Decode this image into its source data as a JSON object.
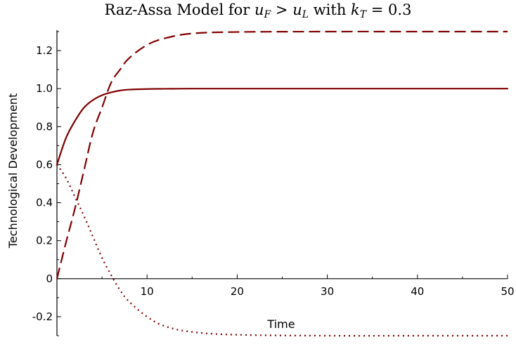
{
  "chart_data": {
    "type": "line",
    "title": {
      "prefix": "Raz-Assa Model for ",
      "u": "u",
      "sub_f": "F",
      "gt": " > ",
      "sub_l": "L",
      "with": " with ",
      "k": "k",
      "sub_t": "T",
      "eq": " = 0.3"
    },
    "xlabel": "Time",
    "ylabel": "Technological Development",
    "xlim": [
      0,
      50
    ],
    "ylim": [
      -0.3,
      1.3
    ],
    "x_ticks": [
      {
        "value": 10,
        "label": "10"
      },
      {
        "value": 20,
        "label": "20"
      },
      {
        "value": 30,
        "label": "30"
      },
      {
        "value": 40,
        "label": "40"
      },
      {
        "value": 50,
        "label": "50"
      }
    ],
    "y_ticks": [
      {
        "value": -0.2,
        "label": "-0.2"
      },
      {
        "value": 0,
        "label": "0"
      },
      {
        "value": 0.2,
        "label": "0.2"
      },
      {
        "value": 0.4,
        "label": "0.4"
      },
      {
        "value": 0.6,
        "label": "0.6"
      },
      {
        "value": 0.8,
        "label": "0.8"
      },
      {
        "value": 1.0,
        "label": "1.0"
      },
      {
        "value": 1.2,
        "label": "1.2"
      }
    ],
    "grid": false,
    "line_color": "#800000",
    "series": [
      {
        "style": "solid",
        "x": [
          0,
          1,
          2,
          3,
          4,
          5,
          6,
          7,
          8,
          10,
          12,
          15,
          20,
          30,
          40,
          50
        ],
        "y": [
          0.6,
          0.74,
          0.83,
          0.9,
          0.94,
          0.965,
          0.98,
          0.99,
          0.995,
          0.998,
          0.999,
          1.0,
          1.0,
          1.0,
          1.0,
          1.0
        ]
      },
      {
        "style": "dashed",
        "x": [
          0,
          1,
          2,
          3,
          4,
          5,
          6,
          7,
          8,
          10,
          12,
          15,
          20,
          30,
          40,
          50
        ],
        "y": [
          0.0,
          0.19,
          0.37,
          0.57,
          0.77,
          0.9,
          1.03,
          1.1,
          1.16,
          1.23,
          1.265,
          1.29,
          1.298,
          1.3,
          1.3,
          1.3
        ]
      },
      {
        "style": "dotted",
        "x": [
          0,
          1,
          2,
          3,
          4,
          5,
          6,
          7,
          8,
          10,
          12,
          15,
          20,
          30,
          40,
          50
        ],
        "y": [
          0.6,
          0.53,
          0.43,
          0.33,
          0.22,
          0.11,
          0.02,
          -0.06,
          -0.12,
          -0.2,
          -0.25,
          -0.28,
          -0.295,
          -0.3,
          -0.3,
          -0.3
        ]
      }
    ]
  }
}
